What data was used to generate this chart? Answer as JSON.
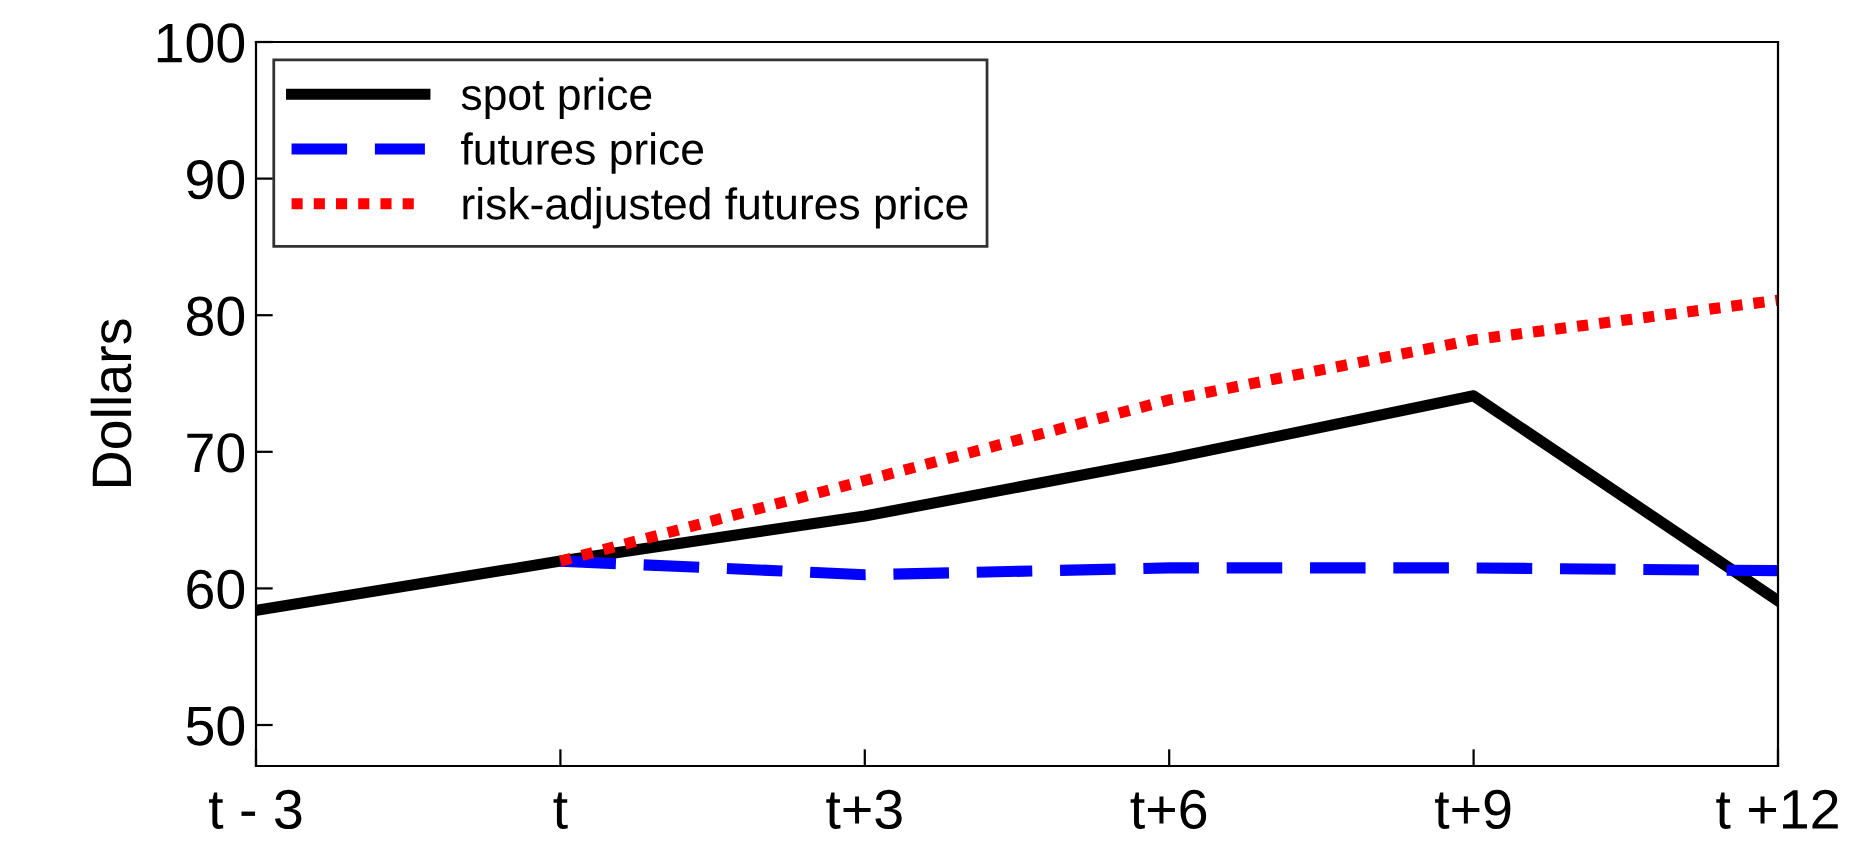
{
  "chart_data": {
    "type": "line",
    "ylabel": "Dollars",
    "categories": [
      "t - 3",
      "t",
      "t+3",
      "t+6",
      "t+9",
      "t +12"
    ],
    "series": [
      {
        "name": "spot price",
        "color": "#000000",
        "line_style": "solid",
        "values": [
          58.4,
          62.0,
          65.3,
          69.5,
          74.1,
          59.1
        ]
      },
      {
        "name": "futures price",
        "color": "#0000ff",
        "line_style": "dashed",
        "values": [
          null,
          62.0,
          61.0,
          61.5,
          61.5,
          61.3
        ]
      },
      {
        "name": "risk-adjusted futures price",
        "color": "#ff0000",
        "line_style": "dotted",
        "values": [
          null,
          62.0,
          67.9,
          73.8,
          78.2,
          81.1
        ]
      }
    ],
    "ylim": [
      47,
      100
    ],
    "yticks": [
      50,
      60,
      70,
      80,
      90,
      100
    ],
    "grid": false,
    "legend": "top left",
    "marker": "none"
  }
}
